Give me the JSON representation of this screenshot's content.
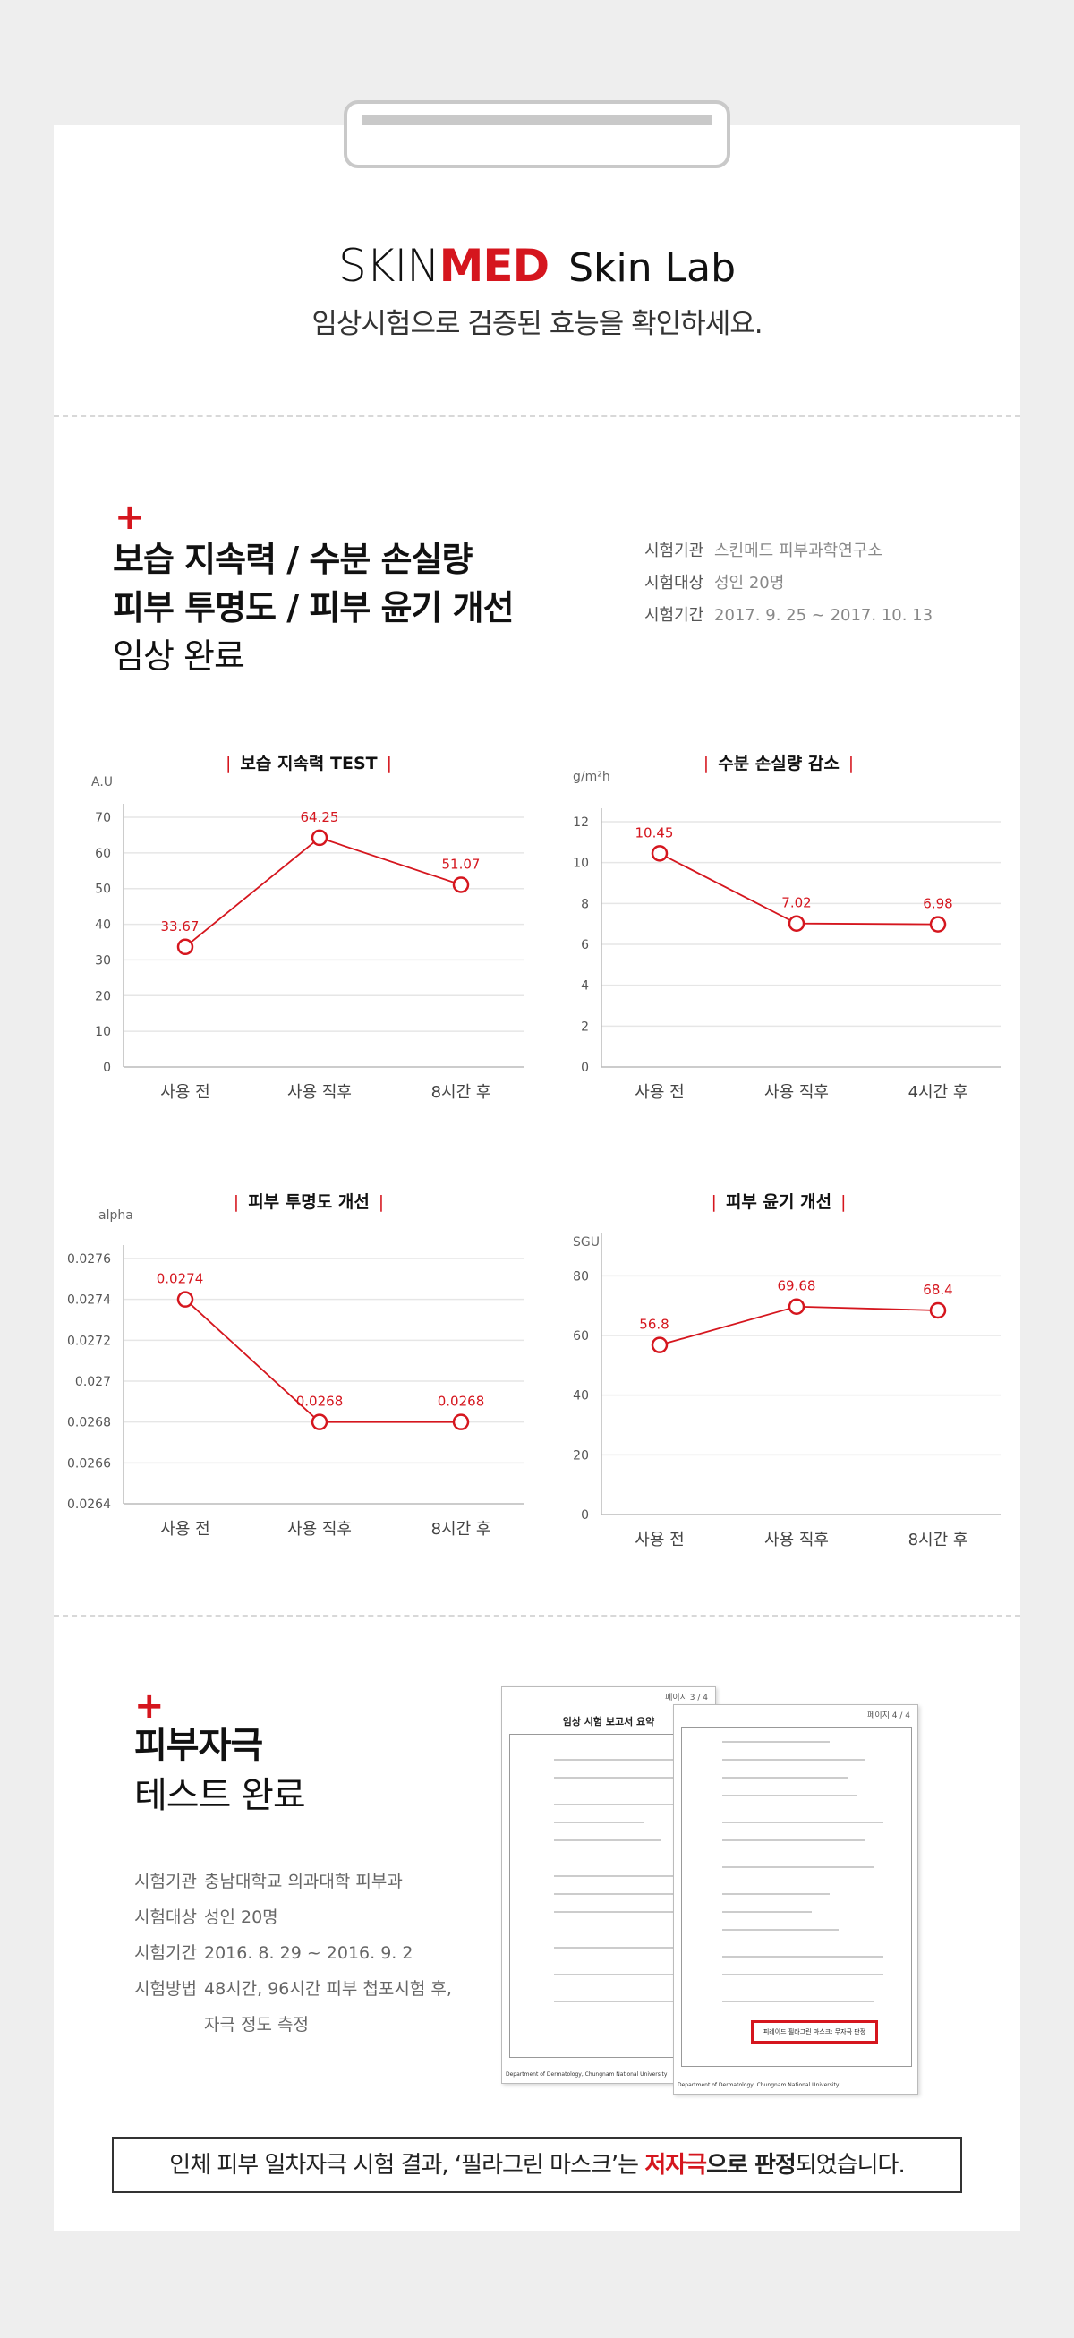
{
  "brand": {
    "skin": "SKIN",
    "med": "MED",
    "lab": "Skin Lab"
  },
  "header": {
    "subtitle": "임상시험으로 검증된 효능을 확인하세요."
  },
  "clinical": {
    "title_line1": "보습 지속력 / 수분 손실량",
    "title_line2": "피부 투명도 / 피부 윤기 개선",
    "title_line3": "임상 완료",
    "info": [
      {
        "key": "시험기관",
        "value": "스킨메드 피부과학연구소"
      },
      {
        "key": "시험대상",
        "value": "성인 20명"
      },
      {
        "key": "시험기간",
        "value": "2017. 9. 25 ~ 2017. 10. 13"
      }
    ]
  },
  "chart_data": [
    {
      "type": "line",
      "title": "보습 지속력 TEST",
      "ylabel": "A.U",
      "categories": [
        "사용 전",
        "사용 직후",
        "8시간 후"
      ],
      "values": [
        33.67,
        64.25,
        51.07
      ],
      "labels": [
        "33.67",
        "64.25",
        "51.07"
      ],
      "ylim": [
        0,
        70
      ],
      "yticks": [
        "0",
        "10",
        "20",
        "30",
        "40",
        "50",
        "60",
        "70"
      ]
    },
    {
      "type": "line",
      "title": "수분 손실량 감소",
      "ylabel": "g/m²h",
      "categories": [
        "사용 전",
        "사용 직후",
        "4시간 후"
      ],
      "values": [
        10.45,
        7.02,
        6.98
      ],
      "labels": [
        "10.45",
        "7.02",
        "6.98"
      ],
      "ylim": [
        0,
        12
      ],
      "yticks": [
        "0",
        "2",
        "4",
        "6",
        "8",
        "10",
        "12"
      ]
    },
    {
      "type": "line",
      "title": "피부 투명도 개선",
      "ylabel": "alpha",
      "categories": [
        "사용 전",
        "사용 직후",
        "8시간 후"
      ],
      "values": [
        0.0274,
        0.0268,
        0.0268
      ],
      "labels": [
        "0.0274",
        "0.0268",
        "0.0268"
      ],
      "ylim": [
        0.0264,
        0.0276
      ],
      "yticks": [
        "0.0264",
        "0.0266",
        "0.0268",
        "0.027",
        "0.0272",
        "0.0274",
        "0.0276"
      ]
    },
    {
      "type": "line",
      "title": "피부 윤기 개선",
      "ylabel": "SGU",
      "categories": [
        "사용 전",
        "사용 직후",
        "8시간 후"
      ],
      "values": [
        56.8,
        69.68,
        68.4
      ],
      "labels": [
        "56.8",
        "69.68",
        "68.4"
      ],
      "ylim": [
        0,
        90
      ],
      "yticks": [
        "0",
        "20",
        "40",
        "60",
        "80"
      ]
    }
  ],
  "irritation": {
    "title_line1": "피부자극",
    "title_line2": "테스트 완료",
    "info": [
      {
        "key": "시험기관",
        "value": "충남대학교 의과대학 피부과"
      },
      {
        "key": "시험대상",
        "value": "성인 20명"
      },
      {
        "key": "시험기간",
        "value": "2016. 8. 29 ~ 2016. 9. 2"
      },
      {
        "key": "시험방법",
        "value": "48시간, 96시간 피부 첩포시험 후,"
      },
      {
        "key": "",
        "value": "자극 정도 측정"
      }
    ],
    "doc_left_title": "임상 시험 보고서 요약",
    "doc_left_page": "페이지 3 / 4",
    "doc_right_page": "페이지 4 / 4",
    "doc_footer": "Department of Dermatology, Chungnam National University",
    "doc_result": "피레이드 필라그린 마스크: 무자극 판정"
  },
  "conclusion": {
    "part1": "인체 피부 일차자극 시험 결과, ‘필라그린 마스크’는 ",
    "part2": "저자극",
    "part3": "으로 판정",
    "part4": "되었습니다."
  },
  "colors": {
    "accent": "#d5161e",
    "line": "#d5161e",
    "grid": "#e6e6e6"
  }
}
